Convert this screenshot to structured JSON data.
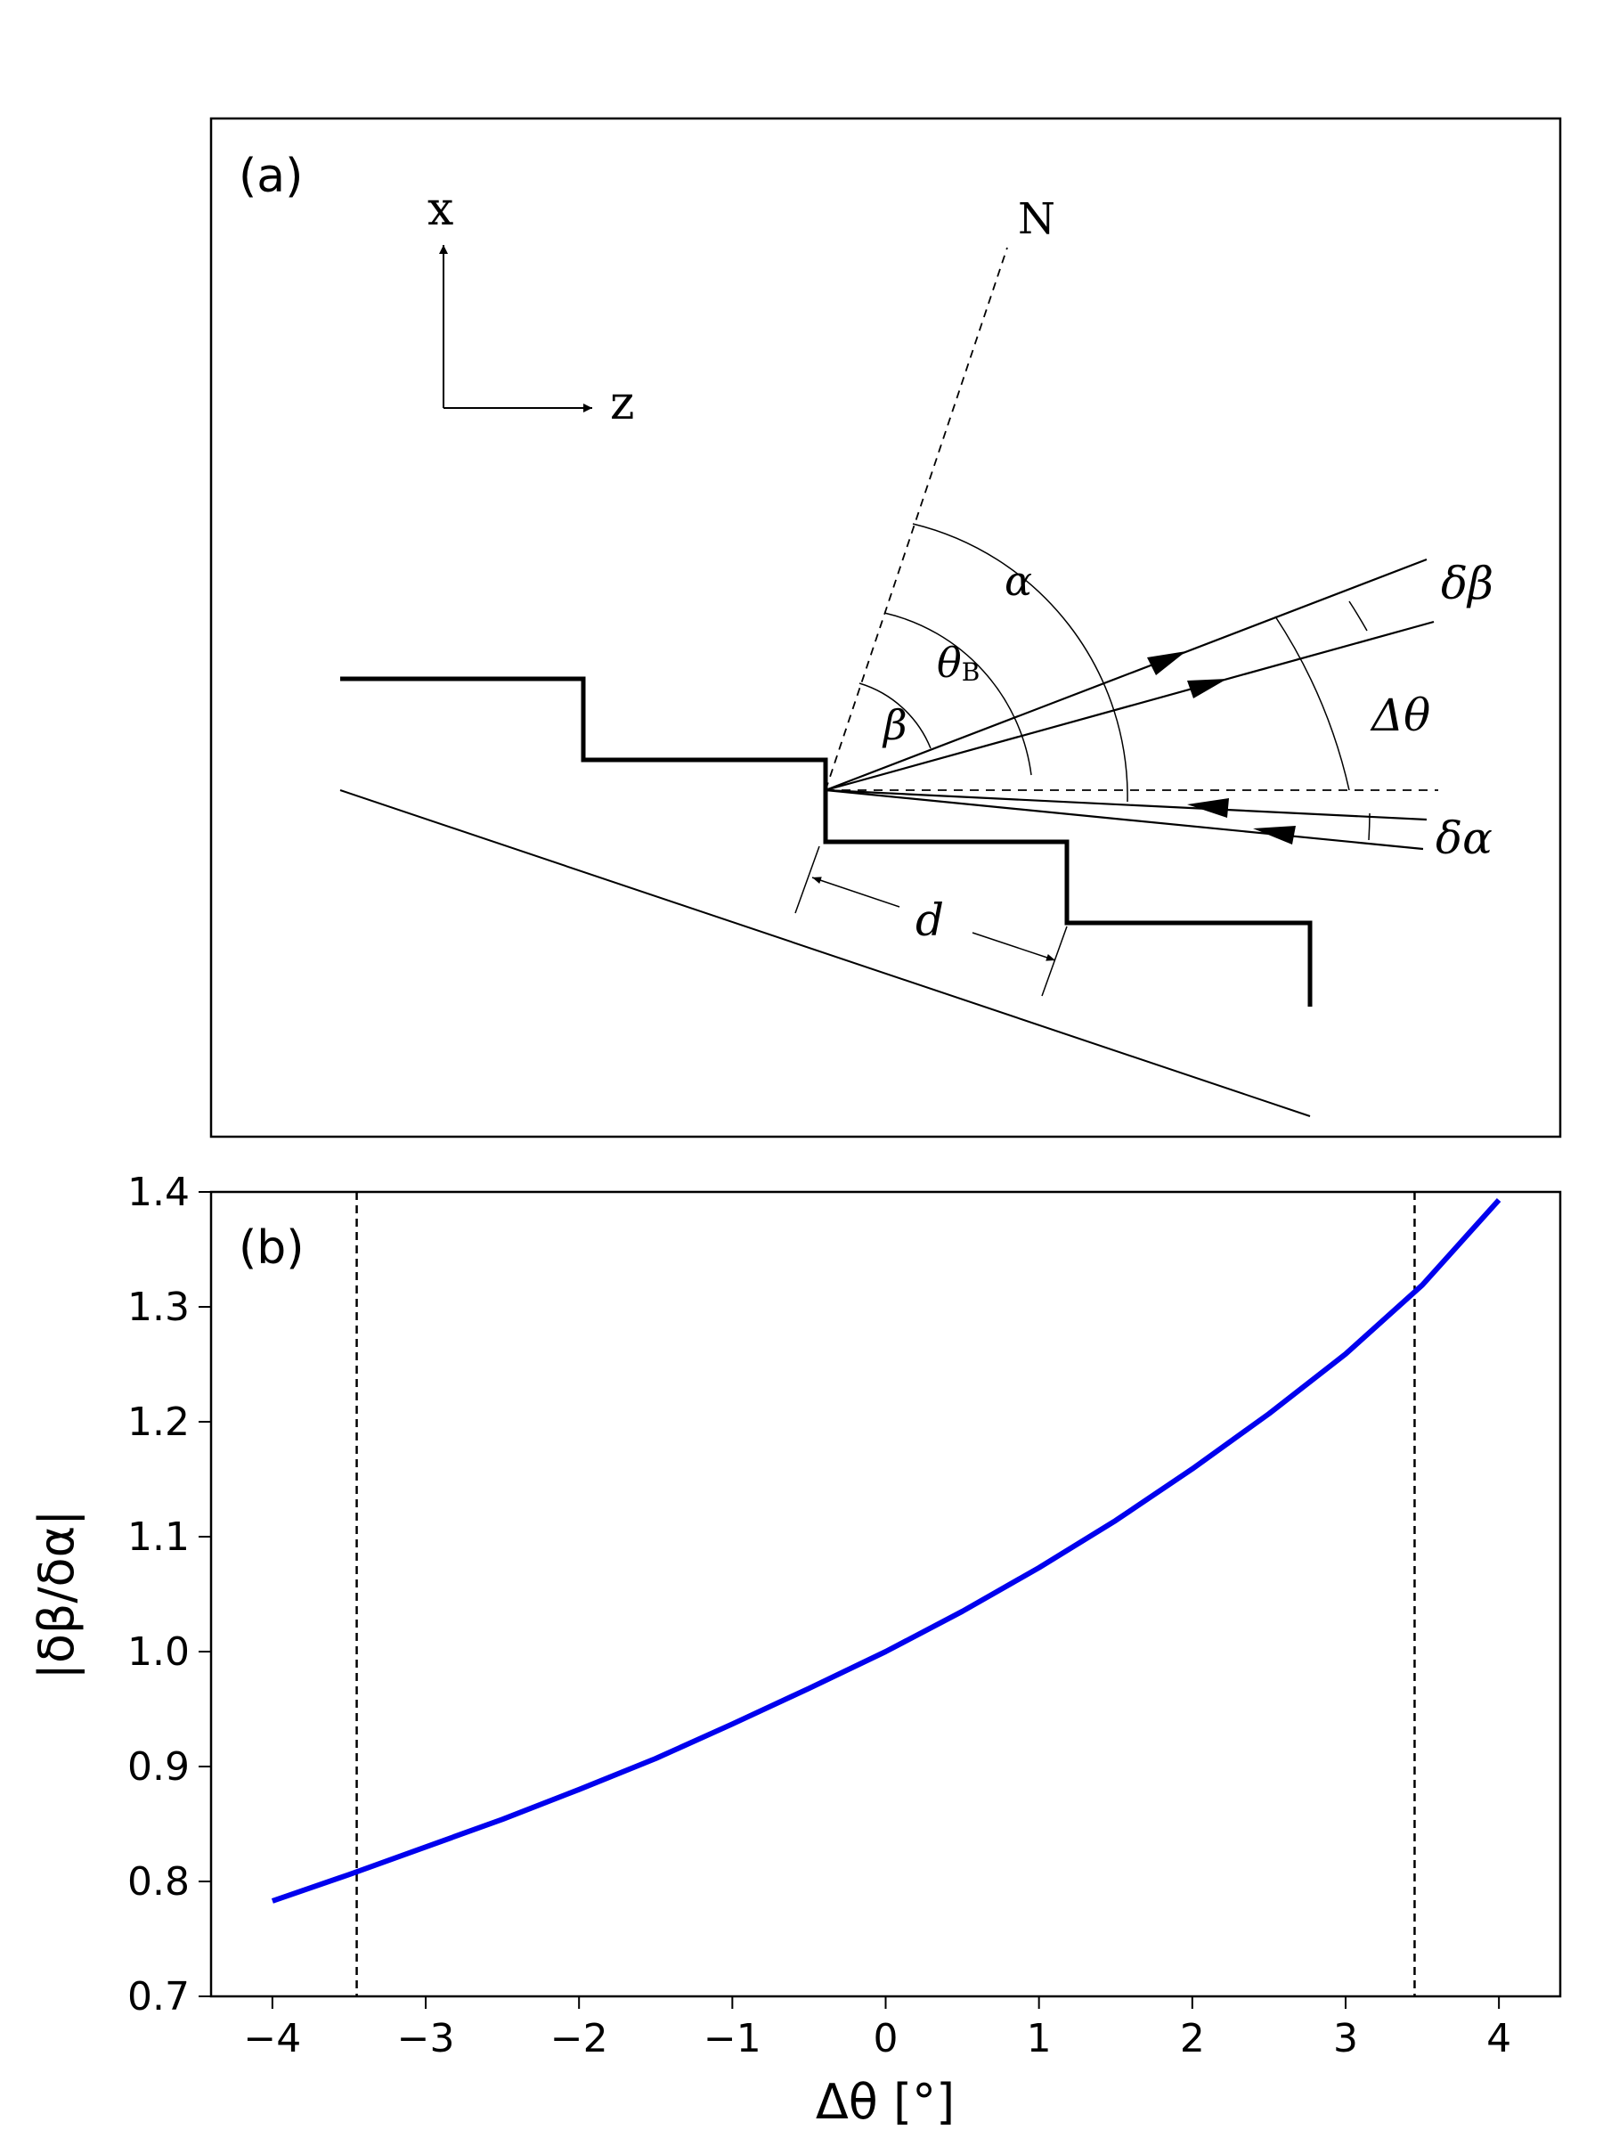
{
  "panel_a": {
    "label": "(a)",
    "axis_x_label": "x",
    "axis_z_label": "z",
    "normal_label": "N",
    "alpha_label": "α",
    "theta_b_label": "θ",
    "theta_b_sub": "B",
    "beta_label": "β",
    "delta_theta_label": "Δθ",
    "delta_beta_label": "δβ",
    "delta_alpha_label": "δα",
    "d_label": "d"
  },
  "chart_data": {
    "type": "line",
    "panel_label": "(b)",
    "xlabel": "Δθ [°]",
    "ylabel": "|δβ/δα|",
    "xlim": [
      -4.4,
      4.4
    ],
    "ylim": [
      0.7,
      1.4
    ],
    "xticks": [
      -4,
      -3,
      -2,
      -1,
      0,
      1,
      2,
      3,
      4
    ],
    "xtick_labels": [
      "−4",
      "−3",
      "−2",
      "−1",
      "0",
      "1",
      "2",
      "3",
      "4"
    ],
    "yticks": [
      0.7,
      0.8,
      0.9,
      1.0,
      1.1,
      1.2,
      1.3,
      1.4
    ],
    "ytick_labels": [
      "0.7",
      "0.8",
      "0.9",
      "1.0",
      "1.1",
      "1.2",
      "1.3",
      "1.4"
    ],
    "series": [
      {
        "color": "#0000ee",
        "x": [
          -4.0,
          -3.5,
          -3.0,
          -2.5,
          -2.0,
          -1.5,
          -1.0,
          -0.5,
          0.0,
          0.5,
          1.0,
          1.5,
          2.0,
          2.5,
          3.0,
          3.5,
          4.0
        ],
        "y": [
          0.783,
          0.806,
          0.83,
          0.854,
          0.88,
          0.907,
          0.937,
          0.968,
          1.0,
          1.035,
          1.073,
          1.114,
          1.159,
          1.207,
          1.259,
          1.319,
          1.393
        ]
      }
    ],
    "vlines": [
      -3.45,
      3.45
    ],
    "grid": false
  }
}
